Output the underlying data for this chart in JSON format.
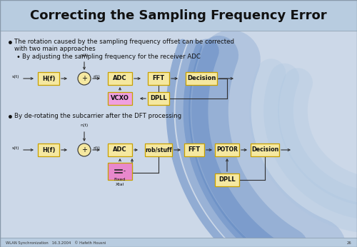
{
  "title": "Correcting the Sampling Frequency Error",
  "bg_main": "#ccd8e8",
  "bg_title": "#b8cce0",
  "bg_footer": "#b8cce0",
  "footer_text": "WLAN Synchronization   16.3.2004   © Hafeth Housni",
  "footer_page": "26",
  "bullet1_line1": "The rotation caused by the sampling frequency offset can be corrected",
  "bullet1_line2": "with two main approaches",
  "sub_bullet1": "By adjusting the sampling frequency for the receiver ADC",
  "sub_bullet2": "By de-rotating the subcarrier after the DFT processing",
  "box_fill": "#f5e8a0",
  "vcxo_fill": "#f0a0e0",
  "xtal_fill": "#e888cc",
  "box_edge": "#c8a000",
  "arrow_color": "#303030",
  "text_color": "#111111",
  "arc_color": "#4070b8"
}
